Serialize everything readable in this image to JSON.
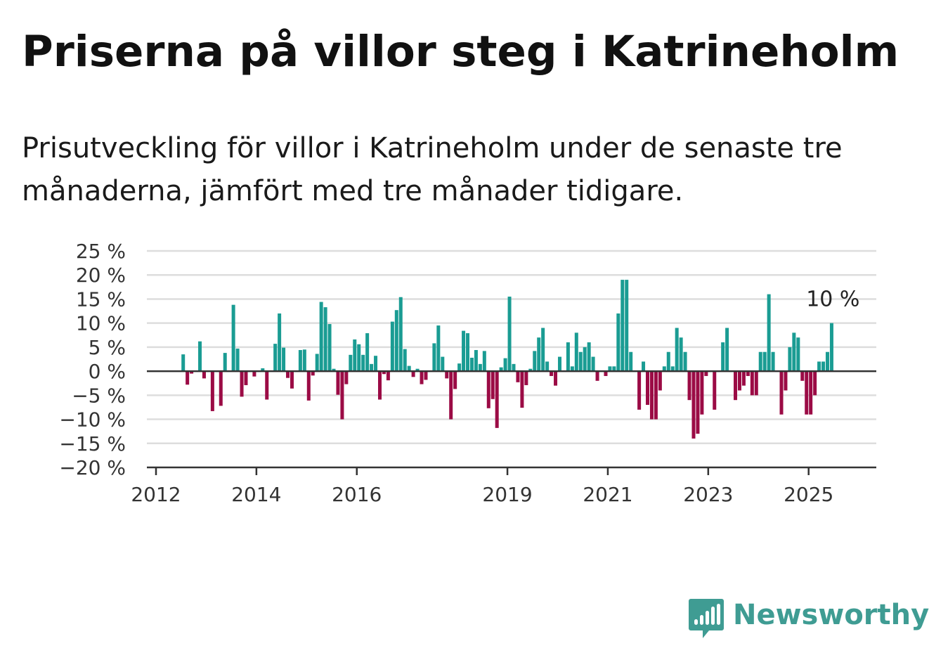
{
  "title": "Priserna på villor steg i Katrineholm",
  "subtitle": "Prisutveckling för villor i Katrineholm under de senaste tre månaderna, jämfört med tre månader tidigare.",
  "brand": {
    "name": "Newsworthy",
    "color": "#3f9c93",
    "icon": "newsworthy-bar-chart-icon"
  },
  "colors": {
    "positive": "#1a9c93",
    "negative": "#9b0b45",
    "gridline": "#dddddd",
    "zero_line": "#333333"
  },
  "chart_data": {
    "type": "bar",
    "ylim": [
      -20,
      25
    ],
    "y_ticks": [
      {
        "value": 25,
        "label": "25 %"
      },
      {
        "value": 20,
        "label": "20 %"
      },
      {
        "value": 15,
        "label": "15 %"
      },
      {
        "value": 10,
        "label": "10 %"
      },
      {
        "value": 5,
        "label": "5 %"
      },
      {
        "value": 0,
        "label": "0 %"
      },
      {
        "value": -5,
        "label": "−5 %"
      },
      {
        "value": -10,
        "label": "−10 %"
      },
      {
        "value": -15,
        "label": "−15 %"
      },
      {
        "value": -20,
        "label": "−20 %"
      }
    ],
    "x_ticks": [
      "2012",
      "2014",
      "2016",
      "2019",
      "2021",
      "2023",
      "2025"
    ],
    "x_start": "2012-01",
    "x_end": "2026-04",
    "grid": true,
    "annotation": {
      "label": "10 %",
      "month": "2025-06"
    },
    "series": [
      {
        "values": [
          {
            "month": "2012-07",
            "value": 3.5
          },
          {
            "month": "2012-08",
            "value": -2.8
          },
          {
            "month": "2012-09",
            "value": -0.5
          },
          {
            "month": "2012-11",
            "value": 6.2
          },
          {
            "month": "2012-12",
            "value": -1.5
          },
          {
            "month": "2013-02",
            "value": -8.3
          },
          {
            "month": "2013-04",
            "value": -7.2
          },
          {
            "month": "2013-05",
            "value": 3.8
          },
          {
            "month": "2013-07",
            "value": 13.8
          },
          {
            "month": "2013-08",
            "value": 4.7
          },
          {
            "month": "2013-09",
            "value": -5.3
          },
          {
            "month": "2013-10",
            "value": -2.9
          },
          {
            "month": "2013-12",
            "value": -1.1
          },
          {
            "month": "2014-02",
            "value": 0.6
          },
          {
            "month": "2014-03",
            "value": -5.9
          },
          {
            "month": "2014-05",
            "value": 5.7
          },
          {
            "month": "2014-06",
            "value": 12.0
          },
          {
            "month": "2014-07",
            "value": 4.9
          },
          {
            "month": "2014-08",
            "value": -1.4
          },
          {
            "month": "2014-09",
            "value": -3.6
          },
          {
            "month": "2014-11",
            "value": 4.4
          },
          {
            "month": "2014-12",
            "value": 4.5
          },
          {
            "month": "2015-01",
            "value": -6.1
          },
          {
            "month": "2015-02",
            "value": -0.9
          },
          {
            "month": "2015-03",
            "value": 3.6
          },
          {
            "month": "2015-04",
            "value": 14.4
          },
          {
            "month": "2015-05",
            "value": 13.3
          },
          {
            "month": "2015-06",
            "value": 9.8
          },
          {
            "month": "2015-07",
            "value": 0.5
          },
          {
            "month": "2015-08",
            "value": -4.9
          },
          {
            "month": "2015-09",
            "value": -10.0
          },
          {
            "month": "2015-10",
            "value": -2.7
          },
          {
            "month": "2015-11",
            "value": 3.4
          },
          {
            "month": "2015-12",
            "value": 6.6
          },
          {
            "month": "2016-01",
            "value": 5.6
          },
          {
            "month": "2016-02",
            "value": 3.4
          },
          {
            "month": "2016-03",
            "value": 7.9
          },
          {
            "month": "2016-04",
            "value": 1.5
          },
          {
            "month": "2016-05",
            "value": 3.2
          },
          {
            "month": "2016-06",
            "value": -5.9
          },
          {
            "month": "2016-07",
            "value": -0.6
          },
          {
            "month": "2016-08",
            "value": -1.9
          },
          {
            "month": "2016-09",
            "value": 10.3
          },
          {
            "month": "2016-10",
            "value": 12.7
          },
          {
            "month": "2016-11",
            "value": 15.4
          },
          {
            "month": "2016-12",
            "value": 4.6
          },
          {
            "month": "2017-01",
            "value": 1.1
          },
          {
            "month": "2017-02",
            "value": -1.2
          },
          {
            "month": "2017-03",
            "value": 0.5
          },
          {
            "month": "2017-04",
            "value": -2.7
          },
          {
            "month": "2017-05",
            "value": -1.8
          },
          {
            "month": "2017-07",
            "value": 5.8
          },
          {
            "month": "2017-08",
            "value": 9.5
          },
          {
            "month": "2017-09",
            "value": 3.0
          },
          {
            "month": "2017-10",
            "value": -1.5
          },
          {
            "month": "2017-11",
            "value": -10.0
          },
          {
            "month": "2017-12",
            "value": -3.7
          },
          {
            "month": "2018-01",
            "value": 1.6
          },
          {
            "month": "2018-02",
            "value": 8.4
          },
          {
            "month": "2018-03",
            "value": 7.9
          },
          {
            "month": "2018-04",
            "value": 2.8
          },
          {
            "month": "2018-05",
            "value": 4.4
          },
          {
            "month": "2018-06",
            "value": 1.5
          },
          {
            "month": "2018-07",
            "value": 4.2
          },
          {
            "month": "2018-08",
            "value": -7.7
          },
          {
            "month": "2018-09",
            "value": -5.8
          },
          {
            "month": "2018-10",
            "value": -11.8
          },
          {
            "month": "2018-11",
            "value": 0.8
          },
          {
            "month": "2018-12",
            "value": 2.7
          },
          {
            "month": "2019-01",
            "value": 15.5
          },
          {
            "month": "2019-02",
            "value": 1.5
          },
          {
            "month": "2019-03",
            "value": -2.3
          },
          {
            "month": "2019-04",
            "value": -7.6
          },
          {
            "month": "2019-05",
            "value": -2.9
          },
          {
            "month": "2019-06",
            "value": 0.5
          },
          {
            "month": "2019-07",
            "value": 4.2
          },
          {
            "month": "2019-08",
            "value": 7.0
          },
          {
            "month": "2019-09",
            "value": 9.0
          },
          {
            "month": "2019-10",
            "value": 2.0
          },
          {
            "month": "2019-11",
            "value": -1.0
          },
          {
            "month": "2019-12",
            "value": -3.0
          },
          {
            "month": "2020-01",
            "value": 3.0
          },
          {
            "month": "2020-03",
            "value": 6.0
          },
          {
            "month": "2020-04",
            "value": 1.0
          },
          {
            "month": "2020-05",
            "value": 8.0
          },
          {
            "month": "2020-06",
            "value": 4.0
          },
          {
            "month": "2020-07",
            "value": 5.0
          },
          {
            "month": "2020-08",
            "value": 6.0
          },
          {
            "month": "2020-09",
            "value": 3.0
          },
          {
            "month": "2020-10",
            "value": -2.0
          },
          {
            "month": "2020-12",
            "value": -1.0
          },
          {
            "month": "2021-01",
            "value": 1.0
          },
          {
            "month": "2021-02",
            "value": 1.0
          },
          {
            "month": "2021-03",
            "value": 12.0
          },
          {
            "month": "2021-04",
            "value": 19.0
          },
          {
            "month": "2021-05",
            "value": 19.0
          },
          {
            "month": "2021-06",
            "value": 4.0
          },
          {
            "month": "2021-08",
            "value": -8.0
          },
          {
            "month": "2021-09",
            "value": 2.0
          },
          {
            "month": "2021-10",
            "value": -7.0
          },
          {
            "month": "2021-11",
            "value": -10.0
          },
          {
            "month": "2021-12",
            "value": -10.0
          },
          {
            "month": "2022-01",
            "value": -4.0
          },
          {
            "month": "2022-02",
            "value": 1.0
          },
          {
            "month": "2022-03",
            "value": 4.0
          },
          {
            "month": "2022-04",
            "value": 1.0
          },
          {
            "month": "2022-05",
            "value": 9.0
          },
          {
            "month": "2022-06",
            "value": 7.0
          },
          {
            "month": "2022-07",
            "value": 4.0
          },
          {
            "month": "2022-08",
            "value": -6.0
          },
          {
            "month": "2022-09",
            "value": -14.0
          },
          {
            "month": "2022-10",
            "value": -13.0
          },
          {
            "month": "2022-11",
            "value": -9.0
          },
          {
            "month": "2022-12",
            "value": -1.0
          },
          {
            "month": "2023-02",
            "value": -8.0
          },
          {
            "month": "2023-04",
            "value": 6.0
          },
          {
            "month": "2023-05",
            "value": 9.0
          },
          {
            "month": "2023-07",
            "value": -6.0
          },
          {
            "month": "2023-08",
            "value": -4.0
          },
          {
            "month": "2023-09",
            "value": -3.0
          },
          {
            "month": "2023-10",
            "value": -1.0
          },
          {
            "month": "2023-11",
            "value": -5.0
          },
          {
            "month": "2023-12",
            "value": -5.0
          },
          {
            "month": "2024-01",
            "value": 4.0
          },
          {
            "month": "2024-02",
            "value": 4.0
          },
          {
            "month": "2024-03",
            "value": 16.0
          },
          {
            "month": "2024-04",
            "value": 4.0
          },
          {
            "month": "2024-06",
            "value": -9.0
          },
          {
            "month": "2024-07",
            "value": -4.0
          },
          {
            "month": "2024-08",
            "value": 5.0
          },
          {
            "month": "2024-09",
            "value": 8.0
          },
          {
            "month": "2024-10",
            "value": 7.0
          },
          {
            "month": "2024-11",
            "value": -2.0
          },
          {
            "month": "2024-12",
            "value": -9.0
          },
          {
            "month": "2025-01",
            "value": -9.0
          },
          {
            "month": "2025-02",
            "value": -5.0
          },
          {
            "month": "2025-03",
            "value": 2.0
          },
          {
            "month": "2025-04",
            "value": 2.0
          },
          {
            "month": "2025-05",
            "value": 4.0
          },
          {
            "month": "2025-06",
            "value": 10.0
          }
        ]
      }
    ]
  }
}
